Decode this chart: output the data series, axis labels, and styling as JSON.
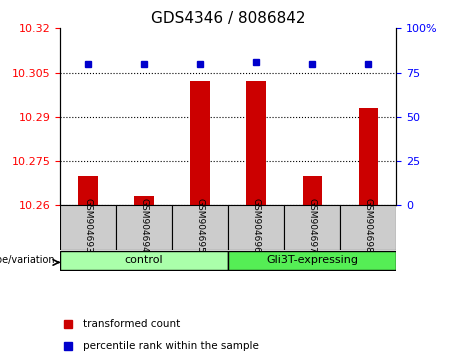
{
  "title": "GDS4346 / 8086842",
  "samples": [
    "GSM904693",
    "GSM904694",
    "GSM904695",
    "GSM904696",
    "GSM904697",
    "GSM904698"
  ],
  "groups": [
    "control",
    "control",
    "control",
    "Gli3T-expressing",
    "Gli3T-expressing",
    "Gli3T-expressing"
  ],
  "group_labels": [
    "control",
    "Gli3T-expressing"
  ],
  "group_colors": [
    "#90EE90",
    "#66DD66"
  ],
  "transformed_counts": [
    10.27,
    10.263,
    10.302,
    10.302,
    10.27,
    10.293
  ],
  "percentile_ranks": [
    80,
    80,
    80,
    81,
    80,
    80
  ],
  "ylim_left": [
    10.26,
    10.32
  ],
  "ylim_right": [
    0,
    100
  ],
  "yticks_left": [
    10.26,
    10.275,
    10.29,
    10.305,
    10.32
  ],
  "yticks_right": [
    0,
    25,
    50,
    75,
    100
  ],
  "ytick_labels_left": [
    "10.26",
    "10.275",
    "10.29",
    "10.305",
    "10.32"
  ],
  "ytick_labels_right": [
    "0",
    "25",
    "50",
    "75",
    "100%"
  ],
  "bar_color": "#CC0000",
  "dot_color": "#0000CC",
  "bar_width": 0.35,
  "legend_labels": [
    "transformed count",
    "percentile rank within the sample"
  ],
  "legend_colors": [
    "#CC0000",
    "#0000CC"
  ],
  "genotype_label": "genotype/variation",
  "xlabel_area_color": "#CCCCCC",
  "group_box_colors": [
    "#AAFFAA",
    "#55EE55"
  ]
}
